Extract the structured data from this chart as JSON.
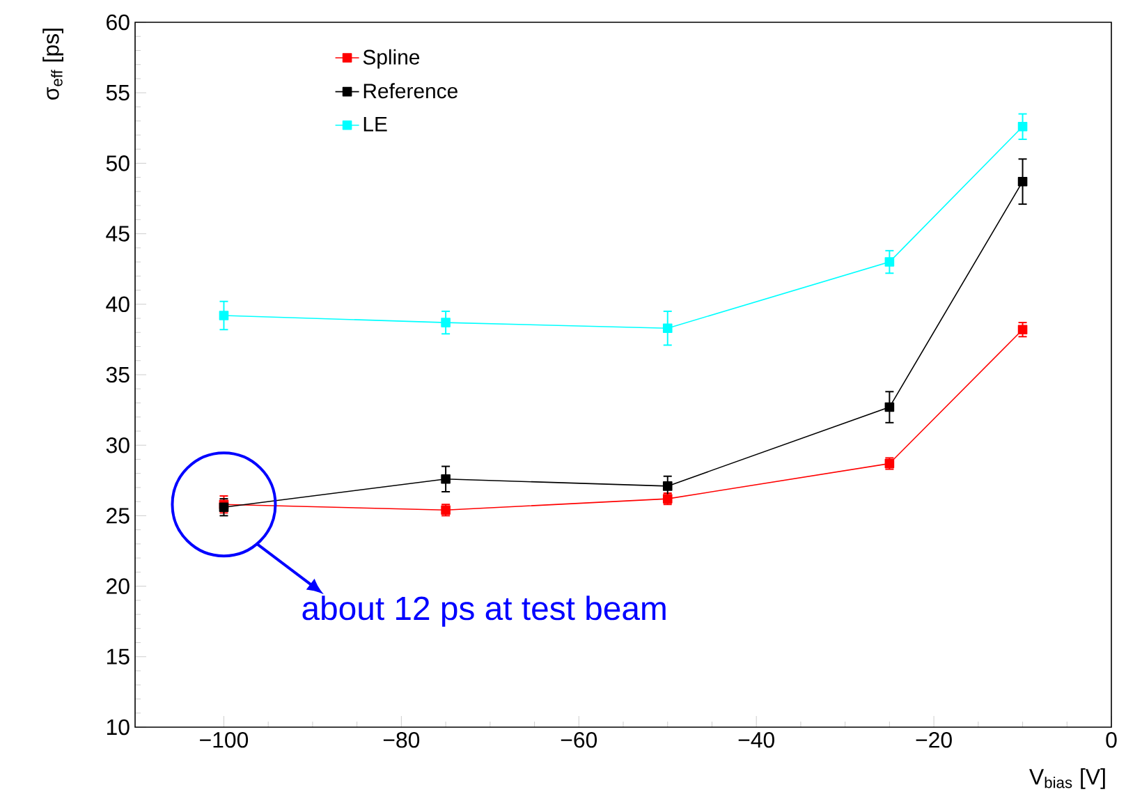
{
  "chart_data": {
    "type": "line",
    "xlabel": "V$_{bias}$ [V]",
    "ylabel": "σ$_{eff}$ [ps]",
    "x": [
      -100,
      -75,
      -50,
      -25,
      -10
    ],
    "series": [
      {
        "name": "Spline",
        "color": "#ff0000",
        "values": [
          25.8,
          25.4,
          26.2,
          28.7,
          38.2
        ],
        "errors": [
          0.6,
          0.4,
          0.4,
          0.4,
          0.5
        ]
      },
      {
        "name": "Reference",
        "color": "#000000",
        "values": [
          25.6,
          27.6,
          27.1,
          32.7,
          48.7
        ],
        "errors": [
          0.6,
          0.9,
          0.7,
          1.1,
          1.6
        ]
      },
      {
        "name": "LE",
        "color": "#00ffff",
        "values": [
          39.2,
          38.7,
          38.3,
          43.0,
          52.6
        ],
        "errors": [
          1.0,
          0.8,
          1.2,
          0.8,
          0.9
        ]
      }
    ],
    "xlim": [
      -110,
      0
    ],
    "ylim": [
      10,
      60
    ],
    "xticks": [
      {
        "value": -100,
        "label": "−100"
      },
      {
        "value": -80,
        "label": "−80"
      },
      {
        "value": -60,
        "label": "−60"
      },
      {
        "value": -40,
        "label": "−40"
      },
      {
        "value": -20,
        "label": "−20"
      },
      0
    ],
    "yticks": [
      10,
      15,
      20,
      25,
      30,
      35,
      40,
      45,
      50,
      55,
      60
    ],
    "annotations": [
      "about 12 ps at test beam"
    ],
    "grid": false,
    "legend": "top left",
    "marker": "square",
    "line_style": "solid"
  }
}
